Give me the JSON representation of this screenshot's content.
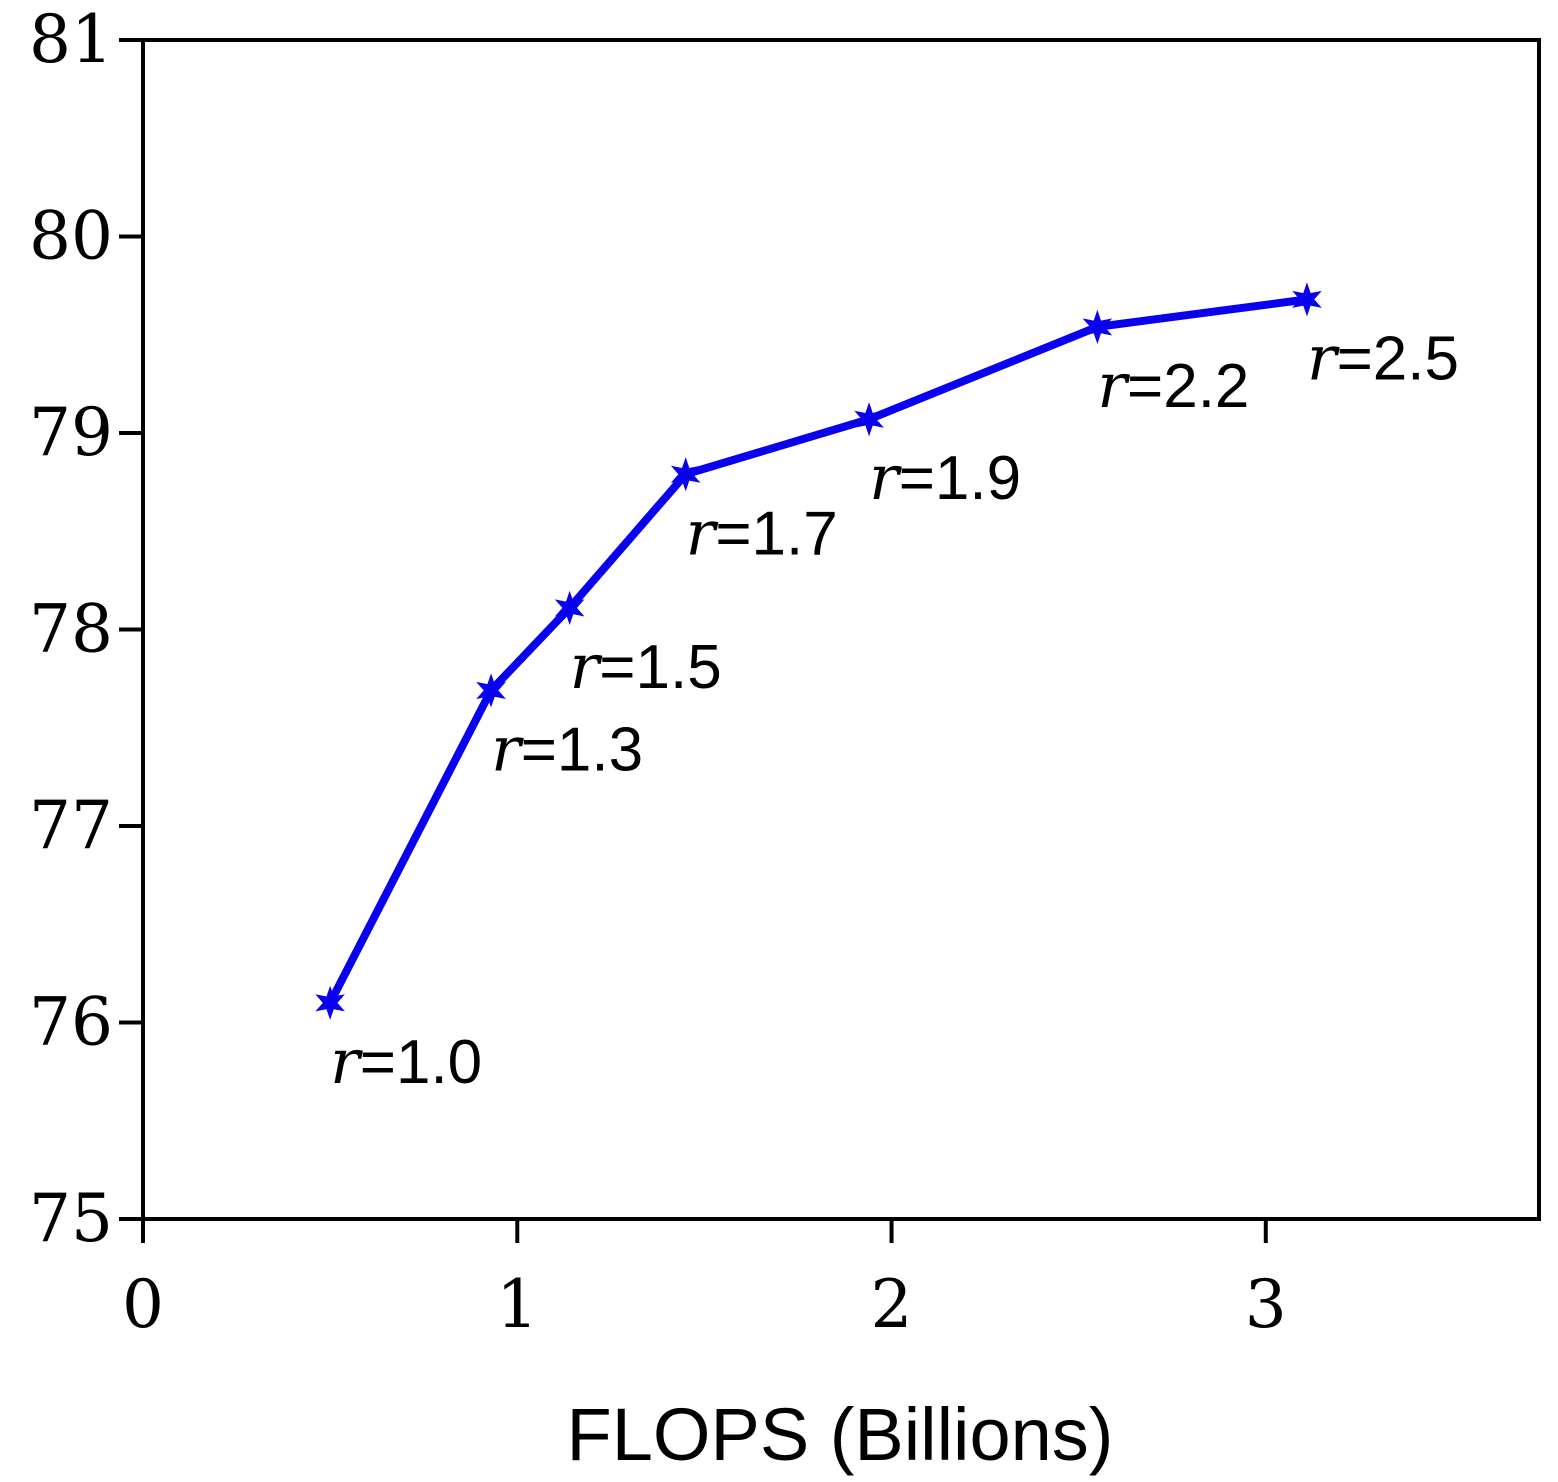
{
  "chart_data": {
    "type": "line",
    "title": "",
    "xlabel": "FLOPS (Billions)",
    "ylabel": "",
    "xlim": [
      0,
      3.73
    ],
    "ylim": [
      75,
      81
    ],
    "xticks": [
      "0",
      "1",
      "2",
      "3"
    ],
    "yticks": [
      "75",
      "76",
      "77",
      "78",
      "79",
      "80",
      "81"
    ],
    "grid": false,
    "legend": "none",
    "series": [
      {
        "color": "#0a00f0",
        "marker": "star",
        "x": [
          0.5,
          0.93,
          1.14,
          1.45,
          1.94,
          2.55,
          3.11
        ],
        "y": [
          76.1,
          77.69,
          78.11,
          78.79,
          79.07,
          79.54,
          79.68
        ],
        "labels": [
          {
            "var": "r",
            "text": "=1.0"
          },
          {
            "var": "r",
            "text": "=1.3"
          },
          {
            "var": "r",
            "text": "=1.5"
          },
          {
            "var": "r",
            "text": "=1.7"
          },
          {
            "var": "r",
            "text": "=1.9"
          },
          {
            "var": "r",
            "text": "=2.2"
          },
          {
            "var": "r",
            "text": "=2.5"
          }
        ]
      }
    ]
  }
}
